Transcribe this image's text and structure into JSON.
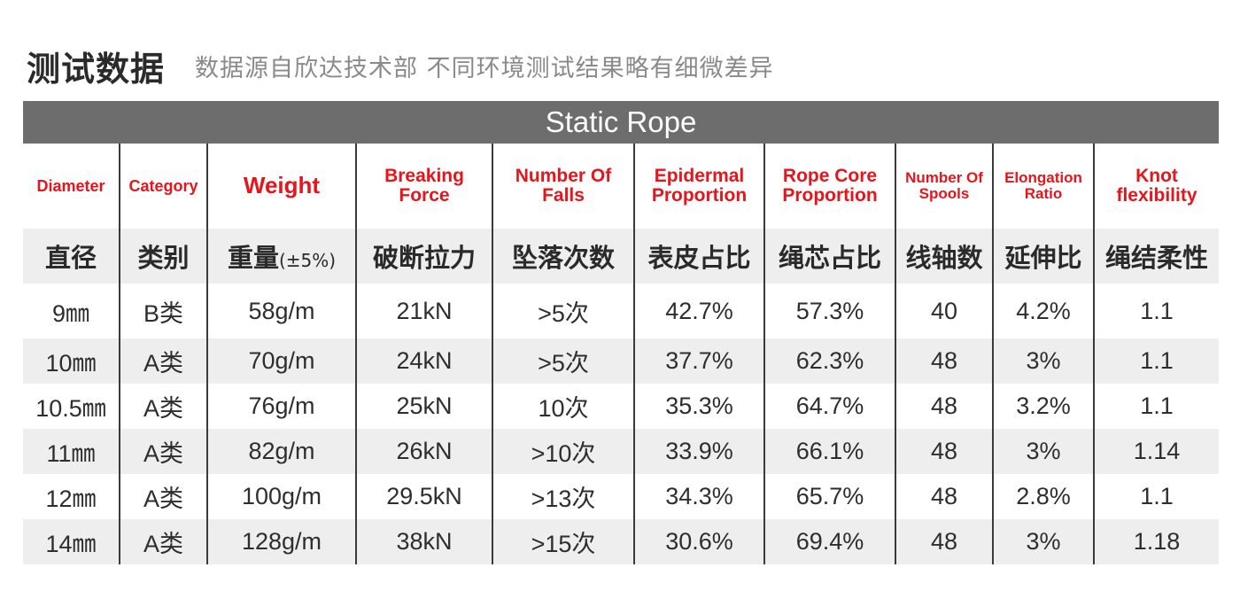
{
  "header": {
    "title": "测试数据",
    "subtitle": "数据源自欣达技术部 不同环境测试结果略有细微差异"
  },
  "table": {
    "caption": "Static Rope",
    "en_headers": [
      {
        "label": "Diameter",
        "size": "18px"
      },
      {
        "label": "Category",
        "size": "18px"
      },
      {
        "label": "Weight",
        "size": "26px"
      },
      {
        "label": "Breaking Force",
        "size": "21px"
      },
      {
        "label": "Number Of Falls",
        "size": "21px"
      },
      {
        "label": "Epidermal Proportion",
        "size": "21px"
      },
      {
        "label": "Rope Core Proportion",
        "size": "21px"
      },
      {
        "label": "Number Of Spools",
        "size": "17px"
      },
      {
        "label": "Elongation Ratio",
        "size": "17px"
      },
      {
        "label": "Knot flexibility",
        "size": "21px"
      }
    ],
    "zh_headers": [
      "直径",
      "类别",
      "重量",
      "破断拉力",
      "坠落次数",
      "表皮占比",
      "绳芯占比",
      "线轴数",
      "延伸比",
      "绳结柔性"
    ],
    "weight_note": "(±5%)",
    "rows": [
      [
        "9㎜",
        "B类",
        "58g/m",
        "21kN",
        ">5次",
        "42.7%",
        "57.3%",
        "40",
        "4.2%",
        "1.1"
      ],
      [
        "10㎜",
        "A类",
        "70g/m",
        "24kN",
        ">5次",
        "37.7%",
        "62.3%",
        "48",
        "3%",
        "1.1"
      ],
      [
        "10.5㎜",
        "A类",
        "76g/m",
        "25kN",
        "10次",
        "35.3%",
        "64.7%",
        "48",
        "3.2%",
        "1.1"
      ],
      [
        "11㎜",
        "A类",
        "82g/m",
        "26kN",
        ">10次",
        "33.9%",
        "66.1%",
        "48",
        "3%",
        "1.14"
      ],
      [
        "12㎜",
        "A类",
        "100g/m",
        "29.5kN",
        ">13次",
        "34.3%",
        "65.7%",
        "48",
        "2.8%",
        "1.1"
      ],
      [
        "14㎜",
        "A类",
        "128g/m",
        "38kN",
        ">15次",
        "30.6%",
        "69.4%",
        "48",
        "3%",
        "1.18"
      ]
    ]
  }
}
